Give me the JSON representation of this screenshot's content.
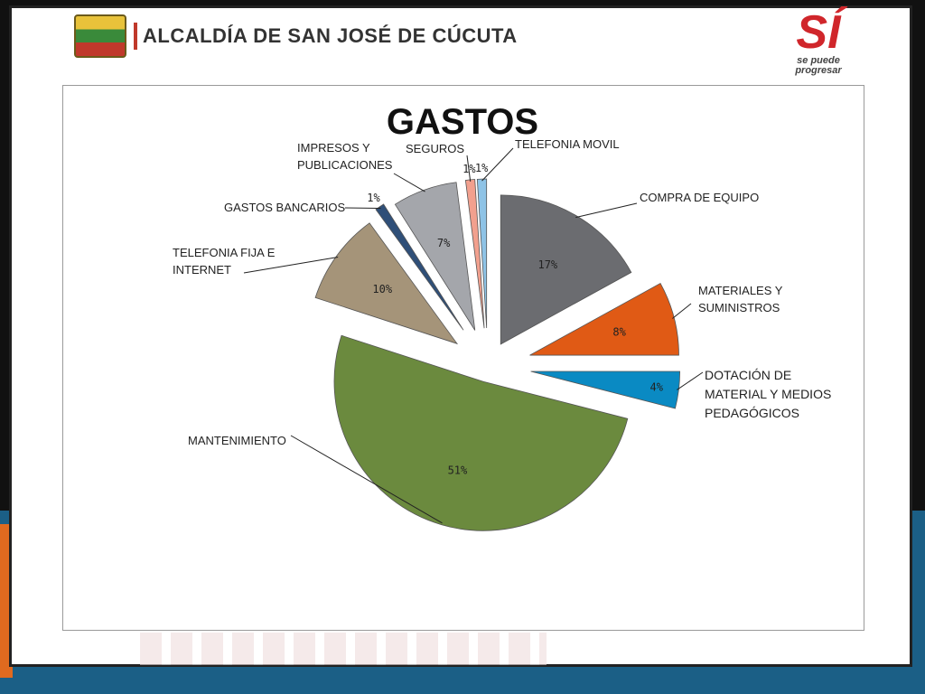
{
  "header": {
    "title": "ALCALDÍA DE SAN JOSÉ DE CÚCUTA",
    "brand_big": "SÍ",
    "brand_line1": "se puede",
    "brand_line2": "progresar"
  },
  "chart_data": {
    "type": "pie",
    "title": "GASTOS",
    "slices": [
      {
        "label": "COMPRA DE EQUIPO",
        "value": 17,
        "pct": "17%",
        "color": "#6b6c70"
      },
      {
        "label": "MATERIALES Y SUMINISTROS",
        "value": 8,
        "pct": "8%",
        "color": "#e05a15"
      },
      {
        "label": "DOTACIÓN DE MATERIAL Y MEDIOS PEDAGÓGICOS",
        "value": 4,
        "pct": "4%",
        "color": "#0a8ac3"
      },
      {
        "label": "MANTENIMIENTO",
        "value": 51,
        "pct": "51%",
        "color": "#6b8a3e"
      },
      {
        "label": "TELEFONIA FIJA E INTERNET",
        "value": 10,
        "pct": "10%",
        "color": "#a59479"
      },
      {
        "label": "GASTOS BANCARIOS",
        "value": 1,
        "pct": "1%",
        "color": "#2f4f78"
      },
      {
        "label": "IMPRESOS Y PUBLICACIONES",
        "value": 7,
        "pct": "7%",
        "color": "#a4a6ab"
      },
      {
        "label": "SEGUROS",
        "value": 1,
        "pct": "1%",
        "color": "#f2a08e"
      },
      {
        "label": "TELEFONIA MOVIL",
        "value": 1,
        "pct": "1%",
        "color": "#8ec3e6"
      }
    ],
    "legend": "none"
  }
}
